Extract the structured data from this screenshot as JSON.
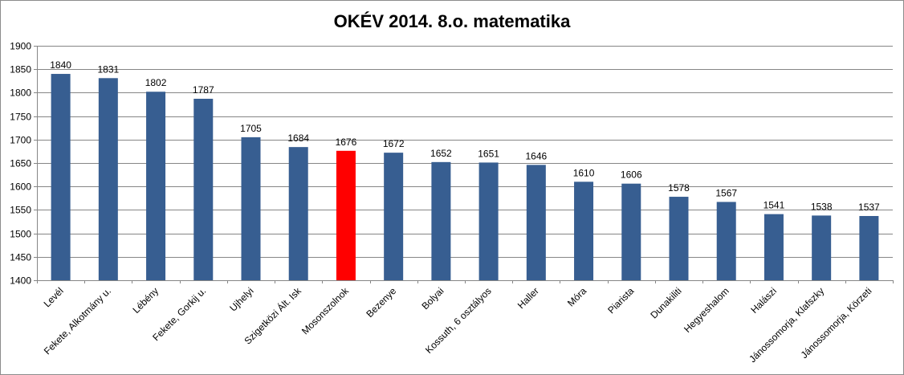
{
  "chart_data": {
    "type": "bar",
    "title": "OKÉV 2014. 8.o. matematika",
    "xlabel": "",
    "ylabel": "",
    "ylim": [
      1400,
      1900
    ],
    "yticks": [
      1400,
      1450,
      1500,
      1550,
      1600,
      1650,
      1700,
      1750,
      1800,
      1850,
      1900
    ],
    "grid": true,
    "legend": "none",
    "categories": [
      "Levél",
      "Fekete, Alkotmány u.",
      "Lébény",
      "Fekete, Gorkij u.",
      "Ujhelyi",
      "Szigetközi Ált. Isk",
      "Mosonszolnok",
      "Bezenye",
      "Bolyai",
      "Kossuth, 6 osztályos",
      "Haller",
      "Móra",
      "Piarista",
      "Dunakiliti",
      "Hegyeshalom",
      "Halászi",
      "Jánossomorja, Klafszky",
      "Jánossomorja, Körzeti"
    ],
    "values": [
      1840,
      1831,
      1802,
      1787,
      1705,
      1684,
      1676,
      1672,
      1652,
      1651,
      1646,
      1610,
      1606,
      1578,
      1567,
      1541,
      1538,
      1537
    ],
    "bar_color": "#375e91",
    "highlight_color": "#ff0000",
    "highlight_index": 6
  }
}
